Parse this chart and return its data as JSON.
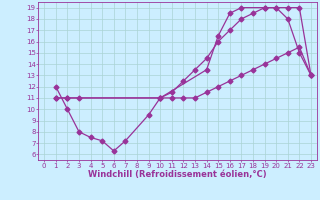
{
  "xlabel": "Windchill (Refroidissement éolien,°C)",
  "xlim": [
    -0.5,
    23.5
  ],
  "ylim": [
    5.5,
    19.5
  ],
  "xticks": [
    0,
    1,
    2,
    3,
    4,
    5,
    6,
    7,
    8,
    9,
    10,
    11,
    12,
    13,
    14,
    15,
    16,
    17,
    18,
    19,
    20,
    21,
    22,
    23
  ],
  "yticks": [
    6,
    7,
    8,
    9,
    10,
    11,
    12,
    13,
    14,
    15,
    16,
    17,
    18,
    19
  ],
  "bg_color": "#cceeff",
  "line_color": "#993399",
  "grid_color": "#aad4d4",
  "line1_x": [
    1,
    2,
    3,
    4,
    5,
    6,
    7,
    9,
    10,
    14,
    15,
    16,
    17,
    19,
    20,
    21,
    22,
    23
  ],
  "line1_y": [
    12,
    10,
    8,
    7.5,
    7.2,
    6.3,
    7.2,
    9.5,
    11,
    13.5,
    16.5,
    18.5,
    19.0,
    19.0,
    19.0,
    18.0,
    15.0,
    13.0
  ],
  "line2_x": [
    1,
    2,
    3,
    10,
    11,
    12,
    13,
    14,
    15,
    16,
    17,
    18,
    19,
    20,
    21,
    22,
    23
  ],
  "line2_y": [
    11,
    11,
    11,
    11.0,
    11.5,
    12.5,
    13.5,
    14.5,
    16.0,
    17.0,
    18.0,
    18.5,
    19.0,
    19.0,
    19.0,
    19.0,
    13.0
  ],
  "line3_x": [
    1,
    2,
    10,
    11,
    12,
    13,
    14,
    15,
    16,
    17,
    18,
    19,
    20,
    21,
    22,
    23
  ],
  "line3_y": [
    11,
    11,
    11.0,
    11.0,
    11.0,
    11.0,
    11.5,
    12.0,
    12.5,
    13.0,
    13.5,
    14.0,
    14.5,
    15.0,
    15.5,
    13.0
  ],
  "marker": "D",
  "marker_size": 2.5,
  "linewidth": 0.9,
  "tick_fontsize": 5.0,
  "xlabel_fontsize": 6.0
}
